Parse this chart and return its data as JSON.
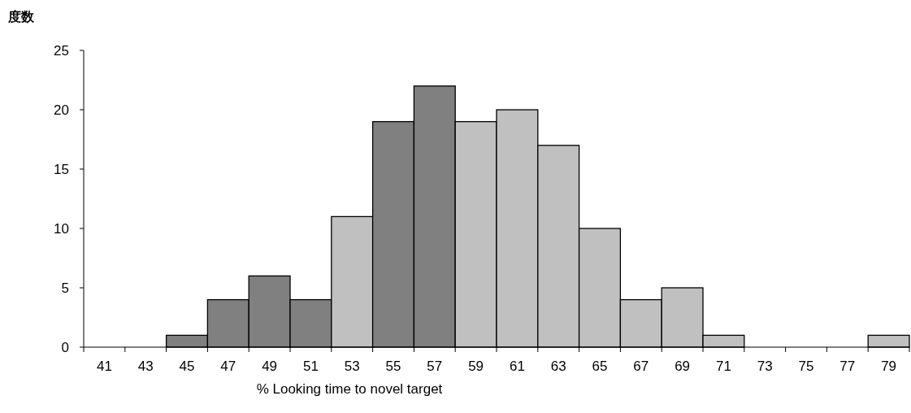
{
  "chart_data": {
    "type": "bar",
    "ylabel": "度数",
    "xlabel": "% Looking time to novel target",
    "categories": [
      "41",
      "43",
      "45",
      "47",
      "49",
      "51",
      "53",
      "55",
      "57",
      "59",
      "61",
      "63",
      "65",
      "67",
      "69",
      "71",
      "73",
      "75",
      "77",
      "79"
    ],
    "values": [
      0,
      0,
      1,
      4,
      6,
      4,
      11,
      19,
      22,
      19,
      20,
      17,
      10,
      4,
      5,
      1,
      0,
      0,
      0,
      1
    ],
    "colors": [
      "#808080",
      "#808080",
      "#808080",
      "#808080",
      "#808080",
      "#808080",
      "#c0c0c0",
      "#808080",
      "#808080",
      "#c0c0c0",
      "#c0c0c0",
      "#c0c0c0",
      "#c0c0c0",
      "#c0c0c0",
      "#c0c0c0",
      "#c0c0c0",
      "#c0c0c0",
      "#c0c0c0",
      "#c0c0c0",
      "#c0c0c0"
    ],
    "ylim": [
      0,
      25
    ],
    "yticks": [
      0,
      5,
      10,
      15,
      20,
      25
    ]
  }
}
